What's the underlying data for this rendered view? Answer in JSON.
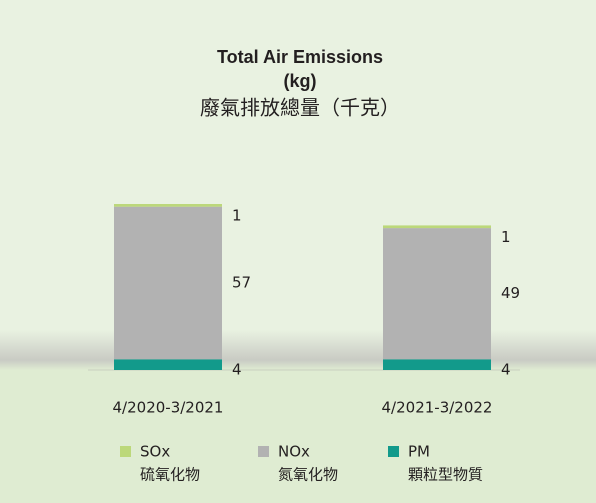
{
  "chart_data": {
    "type": "stacked_bar",
    "title": "Total Air Emissions",
    "unit": "(kg)",
    "subtitle": "廢氣排放總量（千克）",
    "categories": [
      "4/2020-3/2021",
      "4/2021-3/2022"
    ],
    "series": [
      {
        "name": "PM",
        "name_zh": "顆粒型物質",
        "color": "#129a8b",
        "values": [
          4,
          4
        ]
      },
      {
        "name": "NOx",
        "name_zh": "氮氧化物",
        "color": "#b2b2b2",
        "values": [
          57,
          49
        ]
      },
      {
        "name": "SOx",
        "name_zh": "硫氧化物",
        "color": "#bcd87a",
        "values": [
          1,
          1
        ]
      }
    ]
  }
}
